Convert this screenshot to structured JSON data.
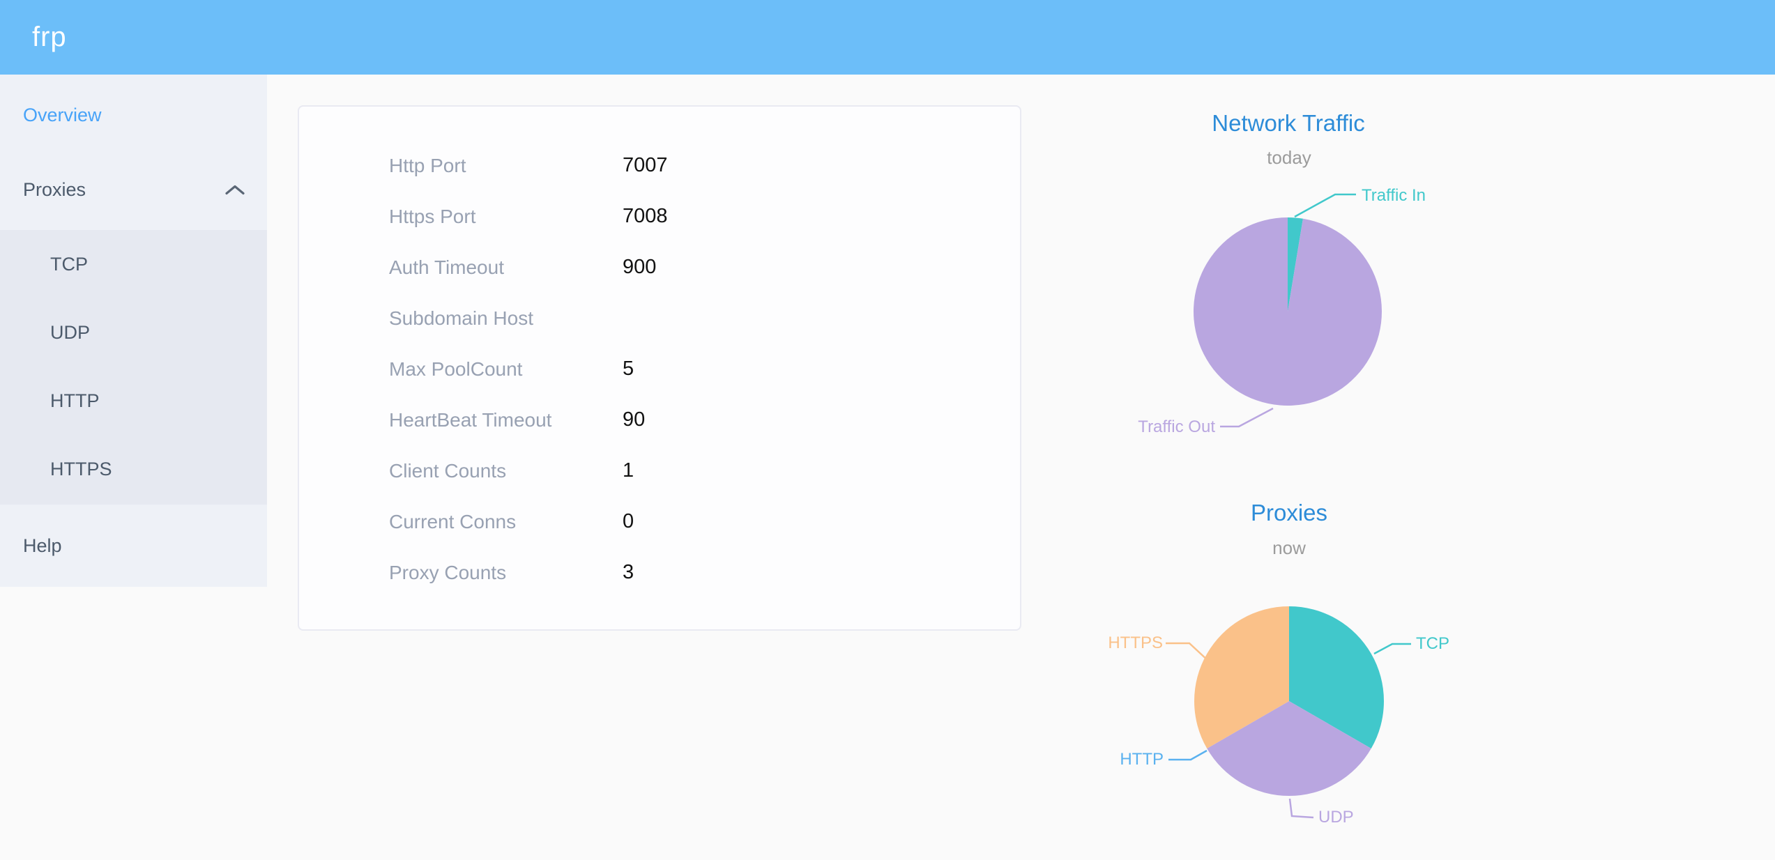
{
  "header": {
    "logo": "frp"
  },
  "sidebar": {
    "overview": "Overview",
    "proxies": "Proxies",
    "submenu": [
      "TCP",
      "UDP",
      "HTTP",
      "HTTPS"
    ],
    "help": "Help"
  },
  "overview_card": {
    "rows": [
      {
        "label": "Http Port",
        "value": "7007"
      },
      {
        "label": "Https Port",
        "value": "7008"
      },
      {
        "label": "Auth Timeout",
        "value": "900"
      },
      {
        "label": "Subdomain Host",
        "value": ""
      },
      {
        "label": "Max PoolCount",
        "value": "5"
      },
      {
        "label": "HeartBeat Timeout",
        "value": "90"
      },
      {
        "label": "Client Counts",
        "value": "1"
      },
      {
        "label": "Current Conns",
        "value": "0"
      },
      {
        "label": "Proxy Counts",
        "value": "3"
      }
    ]
  },
  "chart_data": [
    {
      "type": "pie",
      "title": "Network Traffic",
      "subtitle": "today",
      "legend_position": "none",
      "slices": [
        {
          "label": "Traffic In",
          "pct": 2.6,
          "color": "#41c8cb"
        },
        {
          "label": "Traffic Out",
          "pct": 97.4,
          "color": "#b9a6e0"
        }
      ]
    },
    {
      "type": "pie",
      "title": "Proxies",
      "subtitle": "now",
      "legend_position": "none",
      "slices": [
        {
          "label": "TCP",
          "value": 1,
          "color": "#41c8cb"
        },
        {
          "label": "UDP",
          "value": 1,
          "color": "#b9a6e0"
        },
        {
          "label": "HTTP",
          "value": 0,
          "color": "#5ab1ef"
        },
        {
          "label": "HTTPS",
          "value": 1,
          "color": "#fac189"
        }
      ]
    }
  ]
}
